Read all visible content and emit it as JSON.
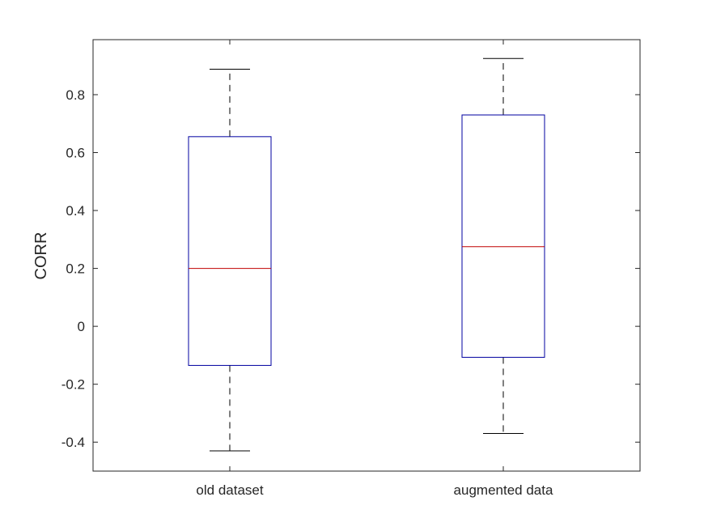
{
  "chart_data": {
    "type": "box",
    "title": "",
    "xlabel": "",
    "ylabel": "CORR",
    "categories": [
      "old dataset",
      "augmented data"
    ],
    "boxes": [
      {
        "category": "old dataset",
        "whisker_low": -0.43,
        "q1": -0.135,
        "median": 0.2,
        "q3": 0.655,
        "whisker_high": 0.888
      },
      {
        "category": "augmented data",
        "whisker_low": -0.37,
        "q1": -0.107,
        "median": 0.275,
        "q3": 0.73,
        "whisker_high": 0.925
      }
    ],
    "ylim": [
      -0.5,
      0.99
    ],
    "yticks": [
      -0.4,
      -0.2,
      0,
      0.2,
      0.4,
      0.6,
      0.8
    ],
    "ytick_labels": [
      "-0.4",
      "-0.2",
      "0",
      "0.2",
      "0.4",
      "0.6",
      "0.8"
    ],
    "grid": false,
    "colors": {
      "box": "#0000a0",
      "median": "#c00000",
      "whisker": "#000000",
      "axis": "#262626"
    }
  }
}
